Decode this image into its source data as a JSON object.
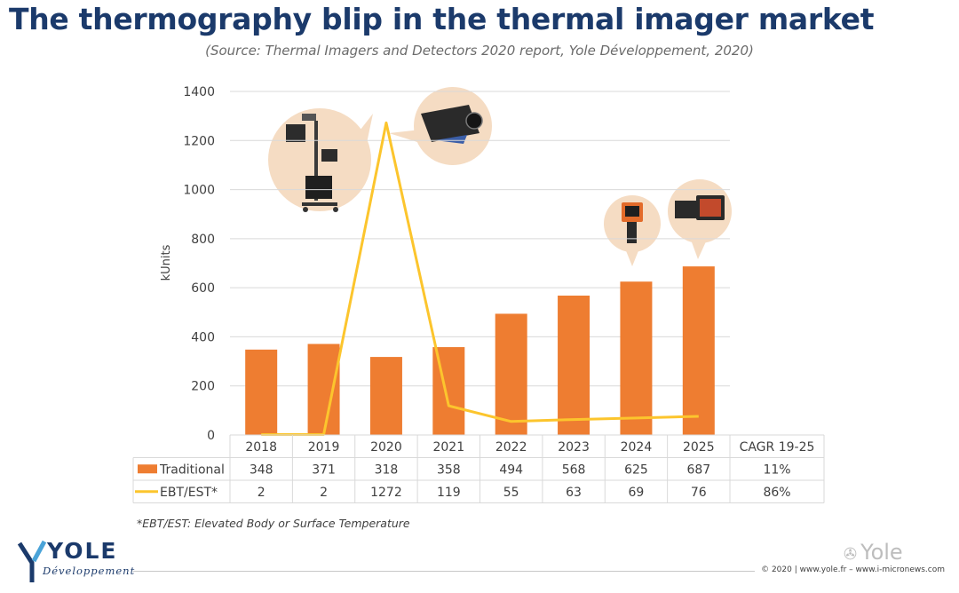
{
  "title": "The thermography blip in the thermal imager market",
  "subtitle": "(Source: Thermal Imagers and Detectors 2020 report, Yole Développement, 2020)",
  "footnote": "*EBT/EST: Elevated Body or Surface Temperature",
  "logo": {
    "name": "YOLE",
    "subtitle": "Développement"
  },
  "copyright": "© 2020 | www.yole.fr – www.i-micronews.com",
  "watermark": "Yole",
  "colors": {
    "bar": "#ee7d31",
    "line": "#fcc52d",
    "title": "#1b3a6b",
    "grid": "#d9d9d9",
    "bubble": "#f5dcc3"
  },
  "chart_data": {
    "type": "bar",
    "categories": [
      "2018",
      "2019",
      "2020",
      "2021",
      "2022",
      "2023",
      "2024",
      "2025"
    ],
    "series": [
      {
        "name": "Traditional",
        "type": "bar",
        "values": [
          348,
          371,
          318,
          358,
          494,
          568,
          625,
          687
        ],
        "cagr": "11%"
      },
      {
        "name": "EBT/EST*",
        "type": "line",
        "values": [
          2,
          2,
          1272,
          119,
          55,
          63,
          69,
          76
        ],
        "cagr": "86%"
      }
    ],
    "ylabel": "kUnits",
    "ylim": [
      0,
      1400
    ],
    "yticks": [
      0,
      200,
      400,
      600,
      800,
      1000,
      1200,
      1400
    ],
    "cagr_header": "CAGR 19-25",
    "grid": true,
    "legend": "data-table"
  }
}
